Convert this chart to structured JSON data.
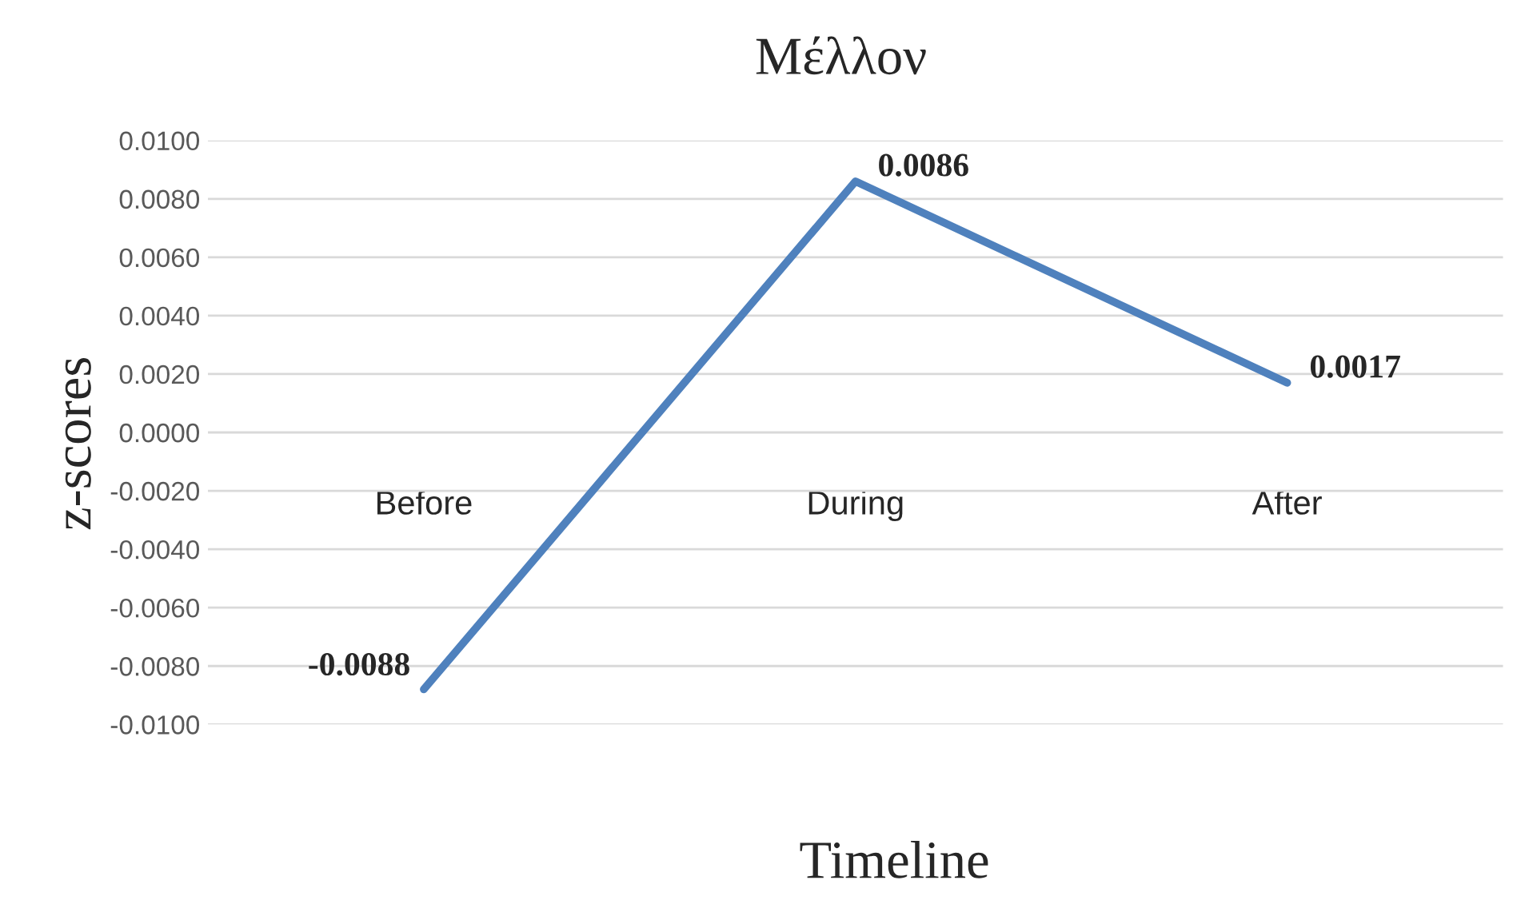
{
  "chart_data": {
    "type": "line",
    "title": "Μέλλον",
    "xlabel": "Timeline",
    "ylabel": "z-scores",
    "categories": [
      "Before",
      "During",
      "After"
    ],
    "series": [
      {
        "color": "#4f81bd",
        "values": [
          -0.0088,
          0.0086,
          0.0017
        ]
      }
    ],
    "data_labels": true,
    "ylim": [
      -0.01,
      0.01
    ],
    "yticks": [
      {
        "value": -0.01,
        "label": "-0.0100"
      },
      {
        "value": -0.008,
        "label": "-0.0080"
      },
      {
        "value": -0.006,
        "label": "-0.0060"
      },
      {
        "value": -0.004,
        "label": "-0.0040"
      },
      {
        "value": -0.002,
        "label": "-0.0020"
      },
      {
        "value": 0,
        "label": "0.0000"
      },
      {
        "value": 0.002,
        "label": "0.0020"
      },
      {
        "value": 0.004,
        "label": "0.0040"
      },
      {
        "value": 0.006,
        "label": "0.0060"
      },
      {
        "value": 0.008,
        "label": "0.0080"
      },
      {
        "value": 0.01,
        "label": "0.0100"
      }
    ],
    "grid": "y",
    "marker": "none",
    "line_style": "solid"
  }
}
